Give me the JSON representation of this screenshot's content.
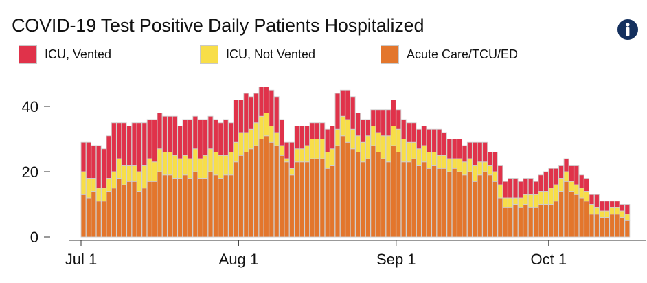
{
  "header": {
    "title": "COVID-19 Test Positive Daily Patients Hospitalized",
    "info_icon": "info-icon"
  },
  "legend": [
    {
      "label": "ICU, Vented",
      "color": "#e0324a"
    },
    {
      "label": "ICU, Not Vented",
      "color": "#f8de48"
    },
    {
      "label": "Acute Care/TCU/ED",
      "color": "#e3762c"
    }
  ],
  "chart_data": {
    "type": "bar",
    "stacked": true,
    "title": "COVID-19 Test Positive Daily Patients Hospitalized",
    "xlabel": "",
    "ylabel": "",
    "ylim": [
      0,
      48
    ],
    "yticks": [
      0,
      20,
      40
    ],
    "xticks": [
      {
        "label": "Jul 1",
        "day": 1
      },
      {
        "label": "Aug 1",
        "day": 32
      },
      {
        "label": "Sep 1",
        "day": 63
      },
      {
        "label": "Oct 1",
        "day": 93
      }
    ],
    "days": [
      1,
      2,
      3,
      4,
      5,
      6,
      7,
      8,
      9,
      10,
      11,
      12,
      13,
      14,
      15,
      16,
      17,
      18,
      19,
      20,
      21,
      22,
      23,
      24,
      25,
      26,
      27,
      28,
      29,
      30,
      31,
      32,
      33,
      34,
      35,
      36,
      37,
      38,
      39,
      40,
      41,
      42,
      43,
      44,
      45,
      46,
      47,
      48,
      49,
      50,
      51,
      52,
      53,
      54,
      55,
      56,
      57,
      58,
      59,
      60,
      61,
      62,
      63,
      64,
      65,
      66,
      67,
      68,
      69,
      70,
      71,
      72,
      73,
      74,
      75,
      76,
      77,
      78,
      79,
      80,
      81,
      82,
      83,
      84,
      85,
      86,
      87,
      88,
      89,
      90,
      91,
      92,
      93,
      94,
      95,
      96,
      97,
      98,
      99,
      100,
      101,
      102,
      103,
      104,
      105,
      106,
      107,
      108
    ],
    "series": [
      {
        "name": "Acute Care/TCU/ED",
        "color": "#e3762c",
        "values": [
          13,
          12,
          14,
          11,
          11,
          14,
          15,
          18,
          16,
          17,
          17,
          14,
          15,
          17,
          17,
          20,
          19,
          19,
          18,
          18,
          19,
          18,
          20,
          18,
          18,
          20,
          19,
          18,
          19,
          19,
          23,
          25,
          26,
          27,
          28,
          30,
          31,
          29,
          28,
          25,
          23,
          19,
          23,
          23,
          23,
          24,
          24,
          24,
          21,
          22,
          28,
          31,
          29,
          27,
          26,
          23,
          24,
          28,
          26,
          24,
          23,
          28,
          26,
          23,
          23,
          24,
          22,
          23,
          21,
          22,
          21,
          21,
          20,
          21,
          20,
          19,
          20,
          17,
          19,
          20,
          19,
          17,
          12,
          9,
          9,
          10,
          9,
          10,
          9,
          9,
          10,
          10,
          10,
          11,
          14,
          17,
          14,
          13,
          12,
          11,
          7,
          7,
          6,
          6,
          7,
          7,
          6,
          5
        ]
      },
      {
        "name": "ICU, Not Vented",
        "color": "#f8de48",
        "values": [
          7,
          6,
          4,
          4,
          4,
          4,
          5,
          6,
          6,
          5,
          5,
          6,
          7,
          7,
          6,
          7,
          7,
          7,
          7,
          6,
          6,
          6,
          7,
          6,
          7,
          7,
          7,
          7,
          6,
          7,
          6,
          7,
          6,
          6,
          7,
          7,
          7,
          5,
          4,
          3,
          1,
          2,
          4,
          4,
          5,
          6,
          6,
          6,
          5,
          5,
          5,
          6,
          7,
          6,
          5,
          6,
          7,
          6,
          6,
          7,
          8,
          6,
          7,
          7,
          6,
          5,
          5,
          5,
          5,
          4,
          4,
          4,
          4,
          3,
          4,
          4,
          4,
          5,
          4,
          3,
          3,
          3,
          4,
          3,
          3,
          2,
          3,
          3,
          4,
          4,
          4,
          4,
          5,
          5,
          4,
          3,
          3,
          3,
          3,
          3,
          3,
          2,
          2,
          2,
          2,
          2,
          2,
          2
        ]
      },
      {
        "name": "ICU, Vented",
        "color": "#e0324a",
        "values": [
          9,
          11,
          10,
          13,
          12,
          13,
          15,
          11,
          13,
          12,
          13,
          15,
          13,
          12,
          13,
          11,
          11,
          11,
          12,
          10,
          11,
          12,
          10,
          12,
          11,
          10,
          10,
          10,
          11,
          9,
          13,
          10,
          12,
          10,
          9,
          9,
          8,
          11,
          11,
          8,
          5,
          8,
          7,
          7,
          6,
          5,
          5,
          5,
          7,
          7,
          11,
          8,
          9,
          10,
          7,
          7,
          5,
          5,
          7,
          8,
          8,
          8,
          6,
          6,
          6,
          6,
          6,
          6,
          7,
          7,
          8,
          7,
          6,
          6,
          6,
          5,
          5,
          7,
          6,
          6,
          4,
          6,
          6,
          5,
          6,
          6,
          5,
          5,
          5,
          4,
          5,
          6,
          6,
          5,
          4,
          4,
          5,
          6,
          4,
          4,
          3,
          4,
          3,
          3,
          2,
          2,
          2,
          3
        ]
      }
    ]
  }
}
